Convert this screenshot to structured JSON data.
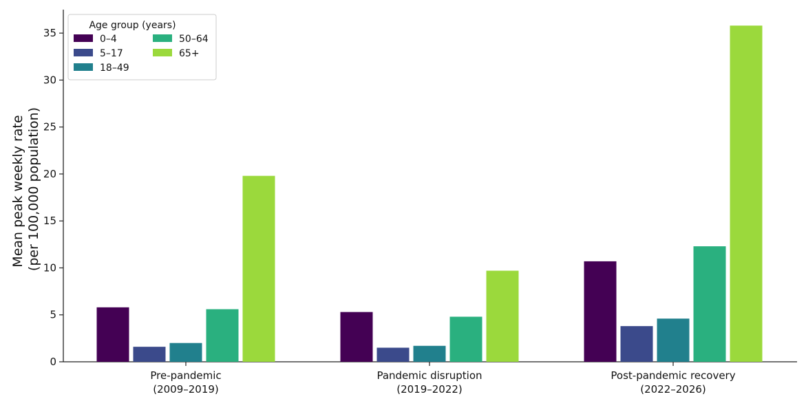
{
  "chart_data": {
    "type": "bar",
    "categories": [
      [
        "Pre-pandemic",
        "(2009–2019)"
      ],
      [
        "Pandemic disruption",
        "(2019–2022)"
      ],
      [
        "Post-pandemic recovery",
        "(2022–2026)"
      ]
    ],
    "series": [
      {
        "name": "0–4",
        "color": "#440154",
        "values": [
          5.8,
          5.3,
          10.7
        ]
      },
      {
        "name": "5–17",
        "color": "#3b4a8b",
        "values": [
          1.6,
          1.5,
          3.8
        ]
      },
      {
        "name": "18–49",
        "color": "#21808d",
        "values": [
          2.0,
          1.7,
          4.6
        ]
      },
      {
        "name": "50–64",
        "color": "#2ab07f",
        "values": [
          5.6,
          4.8,
          12.3
        ]
      },
      {
        "name": "65+",
        "color": "#9bd93c",
        "values": [
          19.8,
          9.7,
          35.8
        ]
      }
    ],
    "ylabel_lines": [
      "Mean peak weekly rate",
      "(per 100,000 population)"
    ],
    "xlabel": "",
    "ylim": [
      0,
      37.5
    ],
    "yticks": [
      0,
      5,
      10,
      15,
      20,
      25,
      30,
      35
    ],
    "legend": {
      "title": "Age group (years)",
      "placement": "top-left",
      "columns": 2
    },
    "grid": false
  }
}
